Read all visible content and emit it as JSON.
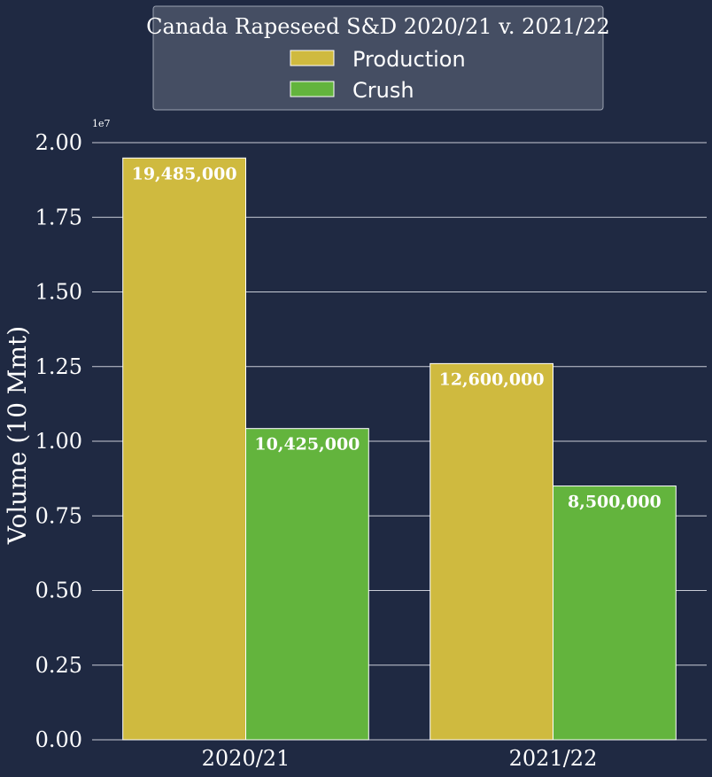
{
  "colors": {
    "background": "#1f2942",
    "grid": "#c8ccd6",
    "production": "#cfba3f",
    "crush": "#63b43d",
    "legend_bg": "#454e63",
    "text": "#ffffff"
  },
  "chart_data": {
    "type": "bar",
    "title": "Canada Rapeseed S&D 2020/21 v. 2021/22",
    "categories": [
      "2020/21",
      "2021/22"
    ],
    "series": [
      {
        "name": "Production",
        "values": [
          19485000,
          12600000
        ],
        "labels": [
          "19,485,000",
          "12,600,000"
        ]
      },
      {
        "name": "Crush",
        "values": [
          10425000,
          8500000
        ],
        "labels": [
          "10,425,000",
          "8,500,000"
        ]
      }
    ],
    "ylabel": "Volume (10 Mmt)",
    "offset_label": "1e7",
    "ylim": [
      0,
      20000000
    ],
    "yticks": [
      "0.00",
      "0.25",
      "0.50",
      "0.75",
      "1.00",
      "1.25",
      "1.50",
      "1.75",
      "2.00"
    ],
    "grid": "horizontal",
    "legend_position": "top-center"
  }
}
